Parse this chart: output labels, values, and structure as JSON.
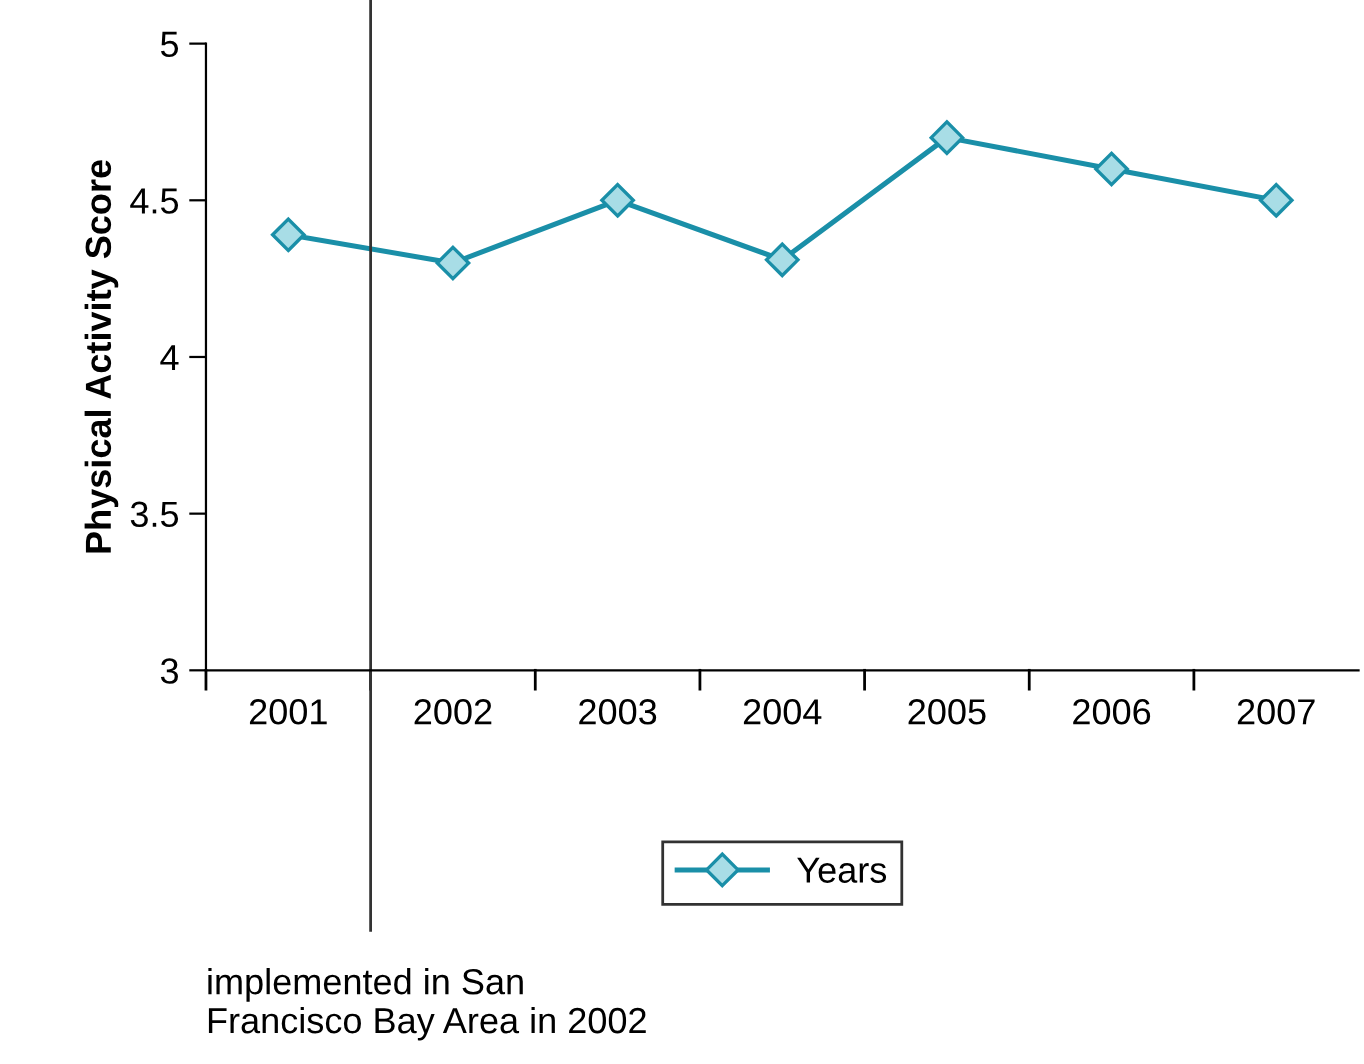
{
  "chart_data": {
    "type": "line",
    "ylabel": "Physical Activity Score",
    "categories": [
      "2001",
      "2002",
      "2003",
      "2004",
      "2005",
      "2006",
      "2007"
    ],
    "series": [
      {
        "name": "Years",
        "color": "#1a8fa8",
        "values": [
          4.39,
          4.3,
          4.5,
          4.31,
          4.7,
          4.6,
          4.5
        ]
      }
    ],
    "ylim": [
      3,
      5
    ],
    "yticks": [
      3,
      3.5,
      4,
      4.5,
      5
    ],
    "marker": "diamond",
    "line_style": "solid",
    "grid": false,
    "legend": "bottom",
    "annotations": [
      "implemented in San\nFrancisco Bay Area in 2002"
    ]
  }
}
